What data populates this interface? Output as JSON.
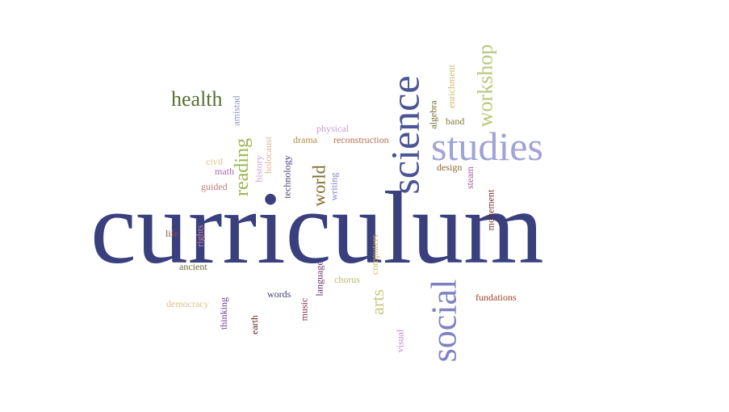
{
  "words": [
    {
      "id": "curriculum",
      "text": "curriculum",
      "color": "#3a3f7e",
      "rotated": false
    },
    {
      "id": "science",
      "text": "science",
      "color": "#4b5494",
      "rotated": true
    },
    {
      "id": "studies",
      "text": "studies",
      "color": "#9fa3d6",
      "rotated": false
    },
    {
      "id": "social",
      "text": "social",
      "color": "#7f82c2",
      "rotated": true
    },
    {
      "id": "workshop",
      "text": "workshop",
      "color": "#b7c77a",
      "rotated": true
    },
    {
      "id": "health",
      "text": "health",
      "color": "#5a6e32",
      "rotated": false
    },
    {
      "id": "reading",
      "text": "reading",
      "color": "#9cb451",
      "rotated": true
    },
    {
      "id": "world",
      "text": "world",
      "color": "#7a6a22",
      "rotated": true
    },
    {
      "id": "arts",
      "text": "arts",
      "color": "#c6c97f",
      "rotated": true
    },
    {
      "id": "enrichment",
      "text": "enrichment",
      "color": "#d2b46a",
      "rotated": true
    },
    {
      "id": "algebra",
      "text": "algebra",
      "color": "#6e6a2c",
      "rotated": true
    },
    {
      "id": "band",
      "text": "band",
      "color": "#8a7a3a",
      "rotated": false
    },
    {
      "id": "amistad",
      "text": "amistad",
      "color": "#8f90c7",
      "rotated": true
    },
    {
      "id": "physical",
      "text": "physical",
      "color": "#c79bd2",
      "rotated": false
    },
    {
      "id": "drama",
      "text": "drama",
      "color": "#b98a43",
      "rotated": false
    },
    {
      "id": "reconstruction",
      "text": "reconstruction",
      "color": "#b86e4a",
      "rotated": false
    },
    {
      "id": "holocaust",
      "text": "holocaust",
      "color": "#e0b48e",
      "rotated": true
    },
    {
      "id": "history",
      "text": "history",
      "color": "#d59bcd",
      "rotated": true
    },
    {
      "id": "technology",
      "text": "technology",
      "color": "#3e3f77",
      "rotated": true
    },
    {
      "id": "writing",
      "text": "writing",
      "color": "#7c83c3",
      "rotated": true
    },
    {
      "id": "design",
      "text": "design",
      "color": "#8a6a2c",
      "rotated": false
    },
    {
      "id": "steam",
      "text": "steam",
      "color": "#a3579c",
      "rotated": true
    },
    {
      "id": "movement",
      "text": "movement",
      "color": "#7a2a28",
      "rotated": true
    },
    {
      "id": "civil",
      "text": "civil",
      "color": "#d7c58a",
      "rotated": false
    },
    {
      "id": "math",
      "text": "math",
      "color": "#b067b4",
      "rotated": false
    },
    {
      "id": "guided",
      "text": "guided",
      "color": "#c07a7a",
      "rotated": false
    },
    {
      "id": "life",
      "text": "life",
      "color": "#8a4a48",
      "rotated": false
    },
    {
      "id": "rights",
      "text": "rights",
      "color": "#d08aa0",
      "rotated": true
    },
    {
      "id": "ancient",
      "text": "ancient",
      "color": "#6a6a34",
      "rotated": false
    },
    {
      "id": "computers",
      "text": "computers",
      "color": "#d4b45a",
      "rotated": true
    },
    {
      "id": "chorus",
      "text": "chorus",
      "color": "#b7bb6c",
      "rotated": false
    },
    {
      "id": "language",
      "text": "language",
      "color": "#6a2f6a",
      "rotated": true
    },
    {
      "id": "words",
      "text": "words",
      "color": "#3f3f7a",
      "rotated": false
    },
    {
      "id": "music",
      "text": "music",
      "color": "#7c2f3f",
      "rotated": true
    },
    {
      "id": "democracy",
      "text": "democracy",
      "color": "#e0c08c",
      "rotated": false
    },
    {
      "id": "thinking",
      "text": "thinking",
      "color": "#6c3f92",
      "rotated": true
    },
    {
      "id": "earth",
      "text": "earth",
      "color": "#5a1f1f",
      "rotated": true
    },
    {
      "id": "fundations",
      "text": "fundations",
      "color": "#a0412c",
      "rotated": false
    },
    {
      "id": "visual",
      "text": "visual",
      "color": "#c08ad0",
      "rotated": true
    }
  ]
}
